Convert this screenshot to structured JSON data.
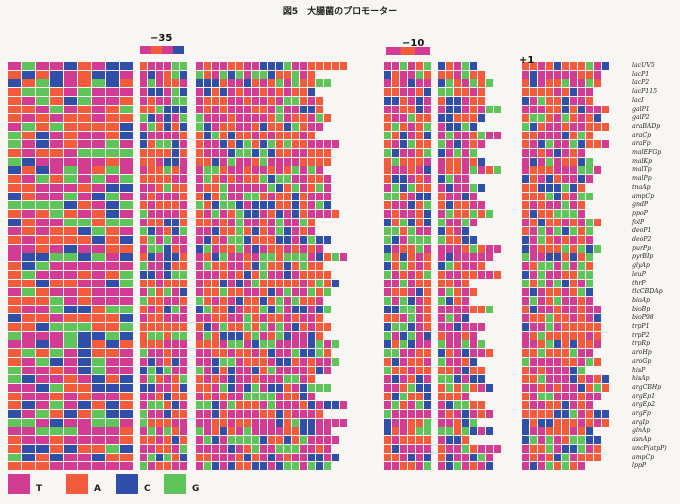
{
  "figure_title": "図5　大腸菌のプロモーター",
  "position_marks": {
    "m35": "−35",
    "m10": "−10",
    "p1": "+1"
  },
  "colors": {
    "T": "#d23c92",
    "A": "#f25c3c",
    "C": "#2f4fa8",
    "G": "#5fc45a"
  },
  "legend": [
    {
      "base": "T",
      "label": "T"
    },
    {
      "base": "A",
      "label": "A"
    },
    {
      "base": "C",
      "label": "C"
    },
    {
      "base": "G",
      "label": "G"
    }
  ],
  "promoters": [
    "lacUV5",
    "lacP1",
    "lacP2",
    "lacP115",
    "lacI",
    "galP1",
    "galP2",
    "araBADp",
    "araCp",
    "araFp",
    "malEFGp",
    "malKp",
    "malTp",
    "malPp",
    "tnaAp",
    "ampCp",
    "gndP",
    "ppoP",
    "folP",
    "deoP1",
    "deoP2",
    "purPp",
    "pyrBIp",
    "glyAp",
    "leuP",
    "thrP",
    "tlcCBDAp",
    "bioAp",
    "bioBp",
    "bioP98",
    "trpP1",
    "trpP2",
    "trpRp",
    "aroHp",
    "aroGp",
    "hisP",
    "hisAp",
    "argCBHp",
    "argEp1",
    "argEp2",
    "argFp",
    "argIp",
    "glnAp",
    "asnAp",
    "uncP(atpP)",
    "ampCp",
    "lppP"
  ]
}
